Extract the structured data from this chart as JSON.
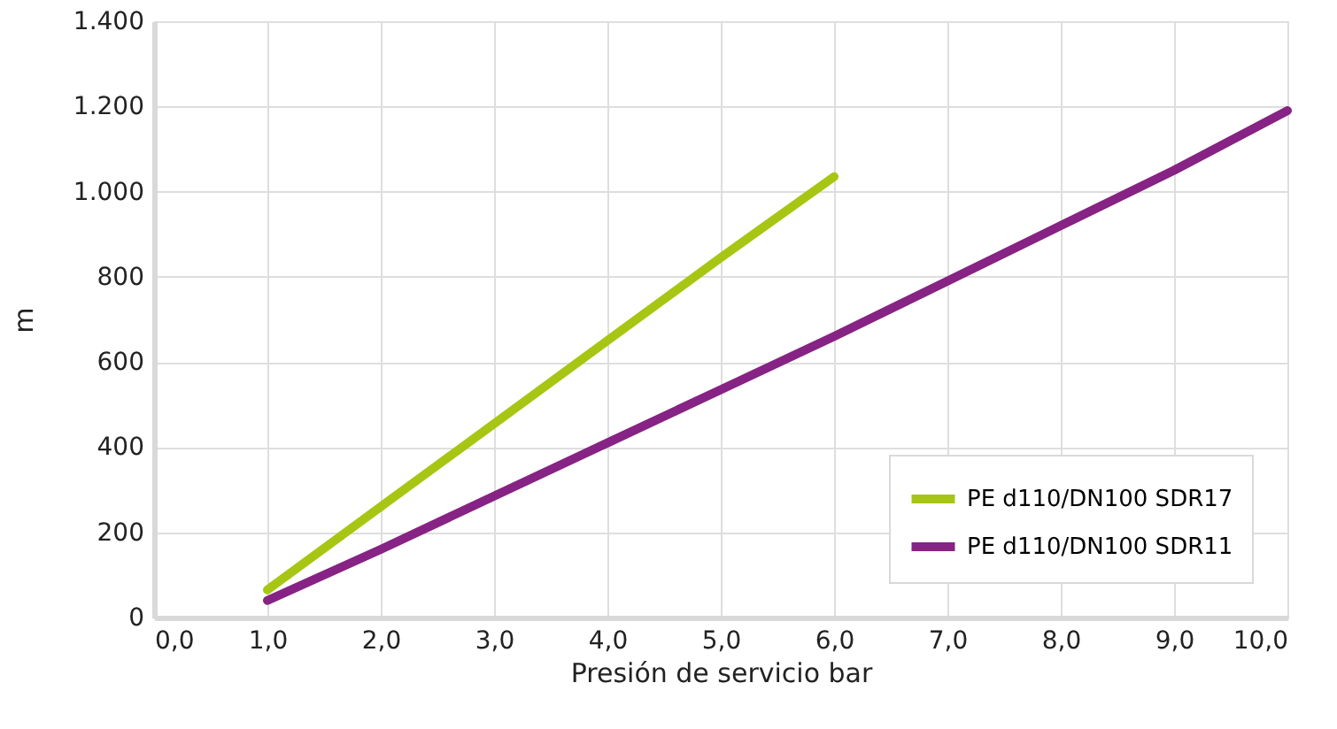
{
  "chart_data": {
    "type": "line",
    "xlabel": "Presión de servicio bar",
    "ylabel": "m",
    "x": [
      1,
      2,
      3,
      4,
      5,
      6,
      7,
      8,
      9,
      10
    ],
    "series": [
      {
        "name": "PE d110/DN100 SDR17",
        "color": "#a7c613",
        "values": [
          65,
          260,
          455,
          650,
          845,
          1035,
          null,
          null,
          null,
          null
        ]
      },
      {
        "name": "PE d110/DN100 SDR11",
        "color": "#862384",
        "values": [
          40,
          160,
          285,
          410,
          535,
          660,
          790,
          920,
          1050,
          1190
        ]
      }
    ],
    "xlim": [
      0,
      10
    ],
    "ylim": [
      0,
      1400
    ],
    "xticks": [
      {
        "value": 0,
        "label": "0,0"
      },
      {
        "value": 1,
        "label": "1,0"
      },
      {
        "value": 2,
        "label": "2,0"
      },
      {
        "value": 3,
        "label": "3,0"
      },
      {
        "value": 4,
        "label": "4,0"
      },
      {
        "value": 5,
        "label": "5,0"
      },
      {
        "value": 6,
        "label": "6,0"
      },
      {
        "value": 7,
        "label": "7,0"
      },
      {
        "value": 8,
        "label": "8,0"
      },
      {
        "value": 9,
        "label": "9,0"
      },
      {
        "value": 10,
        "label": "10,0"
      }
    ],
    "yticks": [
      0,
      200,
      400,
      600,
      800,
      {
        "value": 1000,
        "label": "1.000"
      },
      {
        "value": 1200,
        "label": "1.200"
      },
      {
        "value": 1400,
        "label": "1.400"
      }
    ],
    "grid": true,
    "legend": "bottom right",
    "marker": "none",
    "line_style": "solid"
  }
}
